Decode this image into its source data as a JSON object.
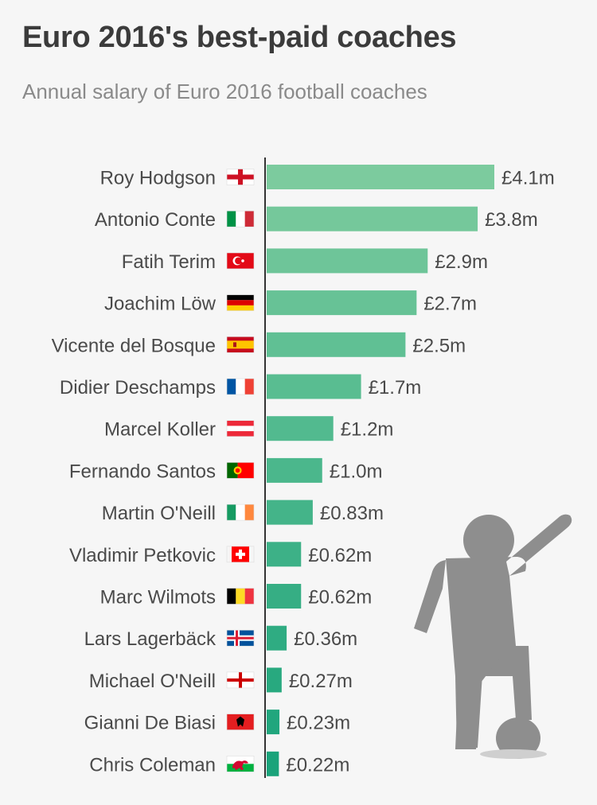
{
  "title": "Euro 2016's best-paid coaches",
  "subtitle": "Annual salary of Euro 2016 football coaches",
  "chart_data": {
    "type": "bar",
    "orientation": "horizontal",
    "title": "Euro 2016's best-paid coaches",
    "subtitle": "Annual salary of Euro 2016 football coaches",
    "categories": [
      "Roy Hodgson",
      "Antonio Conte",
      "Fatih Terim",
      "Joachim Löw",
      "Vicente del Bosque",
      "Didier Deschamps",
      "Marcel Koller",
      "Fernando Santos",
      "Martin O'Neill",
      "Vladimir Petkovic",
      "Marc Wilmots",
      "Lars Lagerbäck",
      "Michael O'Neill",
      "Gianni De Biasi",
      "Chris Coleman"
    ],
    "values": [
      4.1,
      3.8,
      2.9,
      2.7,
      2.5,
      1.7,
      1.2,
      1.0,
      0.83,
      0.62,
      0.62,
      0.36,
      0.27,
      0.23,
      0.22
    ],
    "value_labels": [
      "£4.1m",
      "£3.8m",
      "£2.9m",
      "£2.7m",
      "£2.5m",
      "£1.7m",
      "£1.2m",
      "£1.0m",
      "£0.83m",
      "£0.62m",
      "£0.62m",
      "£0.36m",
      "£0.27m",
      "£0.23m",
      "£0.22m"
    ],
    "flags": [
      "england",
      "italy",
      "turkey",
      "germany",
      "spain",
      "france",
      "austria",
      "portugal",
      "ireland",
      "switzerland",
      "belgium",
      "iceland",
      "northern-ireland",
      "albania",
      "wales"
    ],
    "xlim": [
      0,
      4.1
    ],
    "grid": false,
    "legend": "none",
    "colors": {
      "bar_top": "#7ccb9e",
      "bar_bottom": "#1aa37a",
      "axis": "#333333",
      "label": "#4a4a4a",
      "illustration": "#8e8e8e"
    }
  }
}
